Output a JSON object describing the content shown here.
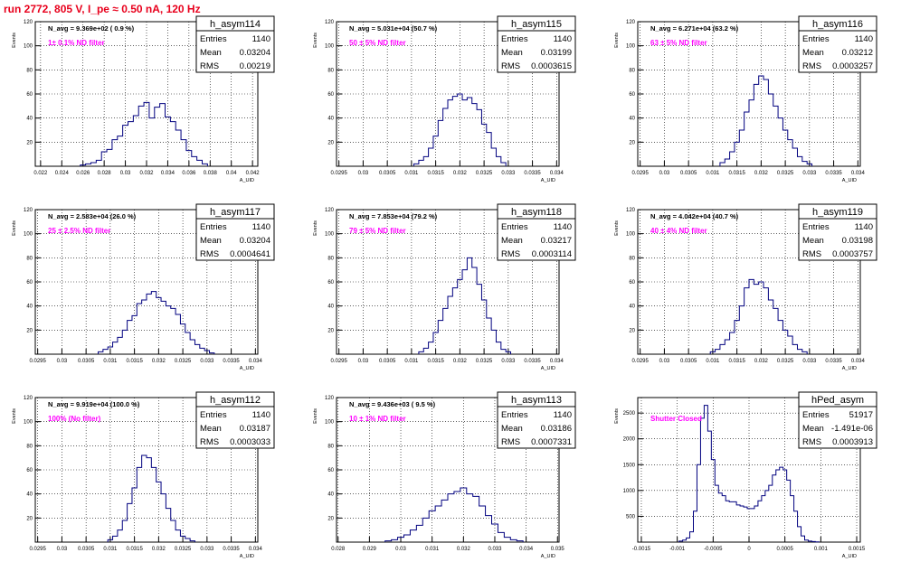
{
  "run_title": "run 2772,   805 V, I_pe ≈ 0.50 nA, 120 Hz",
  "colors": {
    "histogram_line": "#00007f",
    "annotation": "#ff00ff",
    "title": "#e8001c",
    "grid": "#000000"
  },
  "common": {
    "y_axis_label": "Events",
    "x_axis_label": "A_UID"
  },
  "chart_data": [
    {
      "type": "bar",
      "name": "h_asym114",
      "info": "N_avg = 9.369e+02 ( 0.9 %)",
      "filter": "1± 0.1% ND filter",
      "stats": {
        "entries": "1140",
        "mean": "0.03204",
        "rms": "0.00219"
      },
      "xlim": [
        0.0215,
        0.0425
      ],
      "ylim": [
        0,
        120
      ],
      "x_ticks": [
        "0.022",
        "0.024",
        "0.026",
        "0.028",
        "0.03",
        "0.032",
        "0.034",
        "0.036",
        "0.038",
        "0.04",
        "0.042"
      ],
      "y_ticks": [
        "20",
        "40",
        "60",
        "80",
        "100",
        "120"
      ],
      "x": [
        0.026,
        0.0265,
        0.027,
        0.0275,
        0.028,
        0.0285,
        0.029,
        0.0295,
        0.03,
        0.0305,
        0.031,
        0.0315,
        0.032,
        0.0325,
        0.033,
        0.0335,
        0.034,
        0.0345,
        0.035,
        0.0355,
        0.036,
        0.0365,
        0.037,
        0.0375
      ],
      "values": [
        1,
        2,
        3,
        5,
        12,
        14,
        22,
        25,
        34,
        37,
        42,
        50,
        53,
        40,
        49,
        52,
        41,
        37,
        30,
        22,
        13,
        8,
        5,
        2
      ]
    },
    {
      "type": "bar",
      "name": "h_asym115",
      "info": "N_avg = 5.031e+04 (50.7 %)",
      "filter": "50 ± 5% ND filter",
      "stats": {
        "entries": "1140",
        "mean": "0.03199",
        "rms": "0.0003615"
      },
      "xlim": [
        0.02945,
        0.03405
      ],
      "ylim": [
        0,
        120
      ],
      "x_ticks": [
        "0.0295",
        "0.03",
        "0.0305",
        "0.031",
        "0.0315",
        "0.032",
        "0.0325",
        "0.033",
        "0.0335",
        "0.034"
      ],
      "y_ticks": [
        "20",
        "40",
        "60",
        "80",
        "100",
        "120"
      ],
      "x": [
        0.0311,
        0.0312,
        0.0313,
        0.0314,
        0.0315,
        0.0316,
        0.0317,
        0.0318,
        0.0319,
        0.032,
        0.0321,
        0.0322,
        0.0323,
        0.0324,
        0.0325,
        0.0326,
        0.0327,
        0.0328,
        0.0329
      ],
      "values": [
        2,
        5,
        8,
        15,
        25,
        38,
        48,
        55,
        58,
        60,
        55,
        57,
        52,
        47,
        35,
        28,
        15,
        8,
        3
      ]
    },
    {
      "type": "bar",
      "name": "h_asym116",
      "info": "N_avg = 6.271e+04 (63.2 %)",
      "filter": "63 ± 5% ND filter",
      "stats": {
        "entries": "1140",
        "mean": "0.03212",
        "rms": "0.0003257"
      },
      "xlim": [
        0.02945,
        0.03405
      ],
      "ylim": [
        0,
        120
      ],
      "x_ticks": [
        "0.0295",
        "0.03",
        "0.0305",
        "0.031",
        "0.0315",
        "0.032",
        "0.0325",
        "0.033",
        "0.0335",
        "0.034"
      ],
      "y_ticks": [
        "20",
        "40",
        "60",
        "80",
        "100",
        "120"
      ],
      "x": [
        0.0312,
        0.0313,
        0.0314,
        0.0315,
        0.0316,
        0.0317,
        0.0318,
        0.0319,
        0.032,
        0.0321,
        0.0322,
        0.0323,
        0.0324,
        0.0325,
        0.0326,
        0.0327,
        0.0328,
        0.0329,
        0.033
      ],
      "values": [
        3,
        6,
        12,
        20,
        30,
        45,
        55,
        68,
        75,
        72,
        60,
        50,
        40,
        30,
        22,
        15,
        8,
        4,
        2
      ]
    },
    {
      "type": "bar",
      "name": "h_asym117",
      "info": "N_avg = 2.583e+04 (26.0 %)",
      "filter": "25 ± 2.5% ND filter",
      "stats": {
        "entries": "1140",
        "mean": "0.03204",
        "rms": "0.0004641"
      },
      "xlim": [
        0.02945,
        0.03405
      ],
      "ylim": [
        0,
        120
      ],
      "x_ticks": [
        "0.0295",
        "0.03",
        "0.0305",
        "0.031",
        "0.0315",
        "0.032",
        "0.0325",
        "0.033",
        "0.0335",
        "0.034"
      ],
      "y_ticks": [
        "20",
        "40",
        "60",
        "80",
        "100",
        "120"
      ],
      "x": [
        0.0308,
        0.0309,
        0.031,
        0.0311,
        0.0312,
        0.0313,
        0.0314,
        0.0315,
        0.0316,
        0.0317,
        0.0318,
        0.0319,
        0.032,
        0.0321,
        0.0322,
        0.0323,
        0.0324,
        0.0325,
        0.0326,
        0.0327,
        0.0328,
        0.0329,
        0.033,
        0.0331
      ],
      "values": [
        2,
        4,
        6,
        10,
        14,
        20,
        28,
        32,
        42,
        45,
        50,
        52,
        47,
        44,
        40,
        38,
        33,
        25,
        18,
        12,
        8,
        5,
        3,
        1
      ]
    },
    {
      "type": "bar",
      "name": "h_asym118",
      "info": "N_avg = 7.853e+04 (79.2 %)",
      "filter": "79 ± 5% ND filter",
      "stats": {
        "entries": "1140",
        "mean": "0.03217",
        "rms": "0.0003114"
      },
      "xlim": [
        0.02945,
        0.03405
      ],
      "ylim": [
        0,
        120
      ],
      "x_ticks": [
        "0.0295",
        "0.03",
        "0.0305",
        "0.031",
        "0.0315",
        "0.032",
        "0.0325",
        "0.033",
        "0.0335",
        "0.034"
      ],
      "y_ticks": [
        "20",
        "40",
        "60",
        "80",
        "100",
        "120"
      ],
      "x": [
        0.0312,
        0.0313,
        0.0314,
        0.0315,
        0.0316,
        0.0317,
        0.0318,
        0.0319,
        0.032,
        0.0321,
        0.0322,
        0.0323,
        0.0324,
        0.0325,
        0.0326,
        0.0327,
        0.0328,
        0.0329,
        0.033
      ],
      "values": [
        2,
        5,
        10,
        18,
        28,
        38,
        48,
        55,
        62,
        70,
        80,
        72,
        58,
        45,
        30,
        20,
        10,
        4,
        2
      ]
    },
    {
      "type": "bar",
      "name": "h_asym119",
      "info": "N_avg = 4.042e+04 (40.7 %)",
      "filter": "40 ± 4% ND filter",
      "stats": {
        "entries": "1140",
        "mean": "0.03198",
        "rms": "0.0003757"
      },
      "xlim": [
        0.02945,
        0.03405
      ],
      "ylim": [
        0,
        120
      ],
      "x_ticks": [
        "0.0295",
        "0.03",
        "0.0305",
        "0.031",
        "0.0315",
        "0.032",
        "0.0325",
        "0.033",
        "0.0335",
        "0.034"
      ],
      "y_ticks": [
        "20",
        "40",
        "60",
        "80",
        "100",
        "120"
      ],
      "x": [
        0.031,
        0.0311,
        0.0312,
        0.0313,
        0.0314,
        0.0315,
        0.0316,
        0.0317,
        0.0318,
        0.0319,
        0.032,
        0.0321,
        0.0322,
        0.0323,
        0.0324,
        0.0325,
        0.0326,
        0.0327,
        0.0328,
        0.0329
      ],
      "values": [
        2,
        4,
        8,
        12,
        18,
        28,
        40,
        55,
        62,
        58,
        60,
        55,
        45,
        38,
        28,
        20,
        15,
        8,
        4,
        2
      ]
    },
    {
      "type": "bar",
      "name": "h_asym112",
      "info": "N_avg = 9.919e+04 (100.0 %)",
      "filter": "100% (No filter)",
      "stats": {
        "entries": "1140",
        "mean": "0.03187",
        "rms": "0.0003033"
      },
      "xlim": [
        0.02945,
        0.03405
      ],
      "ylim": [
        0,
        120
      ],
      "x_ticks": [
        "0.0295",
        "0.03",
        "0.0305",
        "0.031",
        "0.0315",
        "0.032",
        "0.0325",
        "0.033",
        "0.0335",
        "0.034"
      ],
      "y_ticks": [
        "20",
        "40",
        "60",
        "80",
        "100",
        "120"
      ],
      "x": [
        0.031,
        0.0311,
        0.0312,
        0.0313,
        0.0314,
        0.0315,
        0.0316,
        0.0317,
        0.0318,
        0.0319,
        0.032,
        0.0321,
        0.0322,
        0.0323,
        0.0324,
        0.0325,
        0.0326,
        0.0327
      ],
      "values": [
        2,
        5,
        10,
        18,
        32,
        45,
        62,
        72,
        70,
        62,
        50,
        40,
        28,
        18,
        10,
        5,
        3,
        1
      ]
    },
    {
      "type": "bar",
      "name": "h_asym113",
      "info": "N_avg = 9.436e+03 ( 9.5 %)",
      "filter": "10 ± 1% ND filter",
      "stats": {
        "entries": "1140",
        "mean": "0.03186",
        "rms": "0.0007331"
      },
      "xlim": [
        0.02795,
        0.03505
      ],
      "ylim": [
        0,
        120
      ],
      "x_ticks": [
        "0.028",
        "0.029",
        "0.03",
        "0.031",
        "0.032",
        "0.033",
        "0.034",
        "0.035"
      ],
      "y_ticks": [
        "20",
        "40",
        "60",
        "80",
        "100",
        "120"
      ],
      "x": [
        0.0296,
        0.0298,
        0.03,
        0.0302,
        0.0304,
        0.0306,
        0.0308,
        0.031,
        0.0312,
        0.0314,
        0.0316,
        0.0318,
        0.032,
        0.0322,
        0.0324,
        0.0326,
        0.0328,
        0.033,
        0.0332,
        0.0334,
        0.0336,
        0.0338
      ],
      "values": [
        1,
        2,
        4,
        6,
        10,
        14,
        20,
        26,
        30,
        35,
        40,
        42,
        45,
        40,
        38,
        30,
        22,
        15,
        8,
        4,
        2,
        1
      ]
    },
    {
      "type": "bar",
      "name": "hPed_asym",
      "info": "",
      "filter": "Shutter Closed",
      "stats": {
        "entries": "51917",
        "mean": "-1.491e-06",
        "rms": "0.0003913"
      },
      "xlim": [
        -0.00155,
        0.00155
      ],
      "ylim": [
        0,
        2800
      ],
      "x_ticks": [
        "-0.0015",
        "-0.001",
        "-0.0005",
        "0",
        "0.0005",
        "0.001",
        "0.0015"
      ],
      "y_ticks": [
        "500",
        "1000",
        "1500",
        "2000",
        "2500"
      ],
      "x": [
        -0.00095,
        -0.0009,
        -0.00085,
        -0.0008,
        -0.00075,
        -0.0007,
        -0.00065,
        -0.0006,
        -0.00055,
        -0.0005,
        -0.00045,
        -0.0004,
        -0.00035,
        -0.0003,
        -0.00025,
        -0.0002,
        -0.00015,
        -0.0001,
        -5e-05,
        0,
        5e-05,
        0.0001,
        0.00015,
        0.0002,
        0.00025,
        0.0003,
        0.00035,
        0.0004,
        0.00045,
        0.0005,
        0.00055,
        0.0006,
        0.00065,
        0.0007,
        0.00075,
        0.0008,
        0.00085,
        0.0009,
        0.00095
      ],
      "values": [
        20,
        40,
        80,
        200,
        600,
        1500,
        2400,
        2650,
        2150,
        1600,
        1100,
        950,
        900,
        800,
        780,
        780,
        720,
        700,
        680,
        650,
        650,
        700,
        800,
        900,
        1000,
        1100,
        1300,
        1400,
        1450,
        1400,
        1200,
        900,
        600,
        300,
        120,
        40,
        20,
        10,
        5
      ]
    }
  ]
}
